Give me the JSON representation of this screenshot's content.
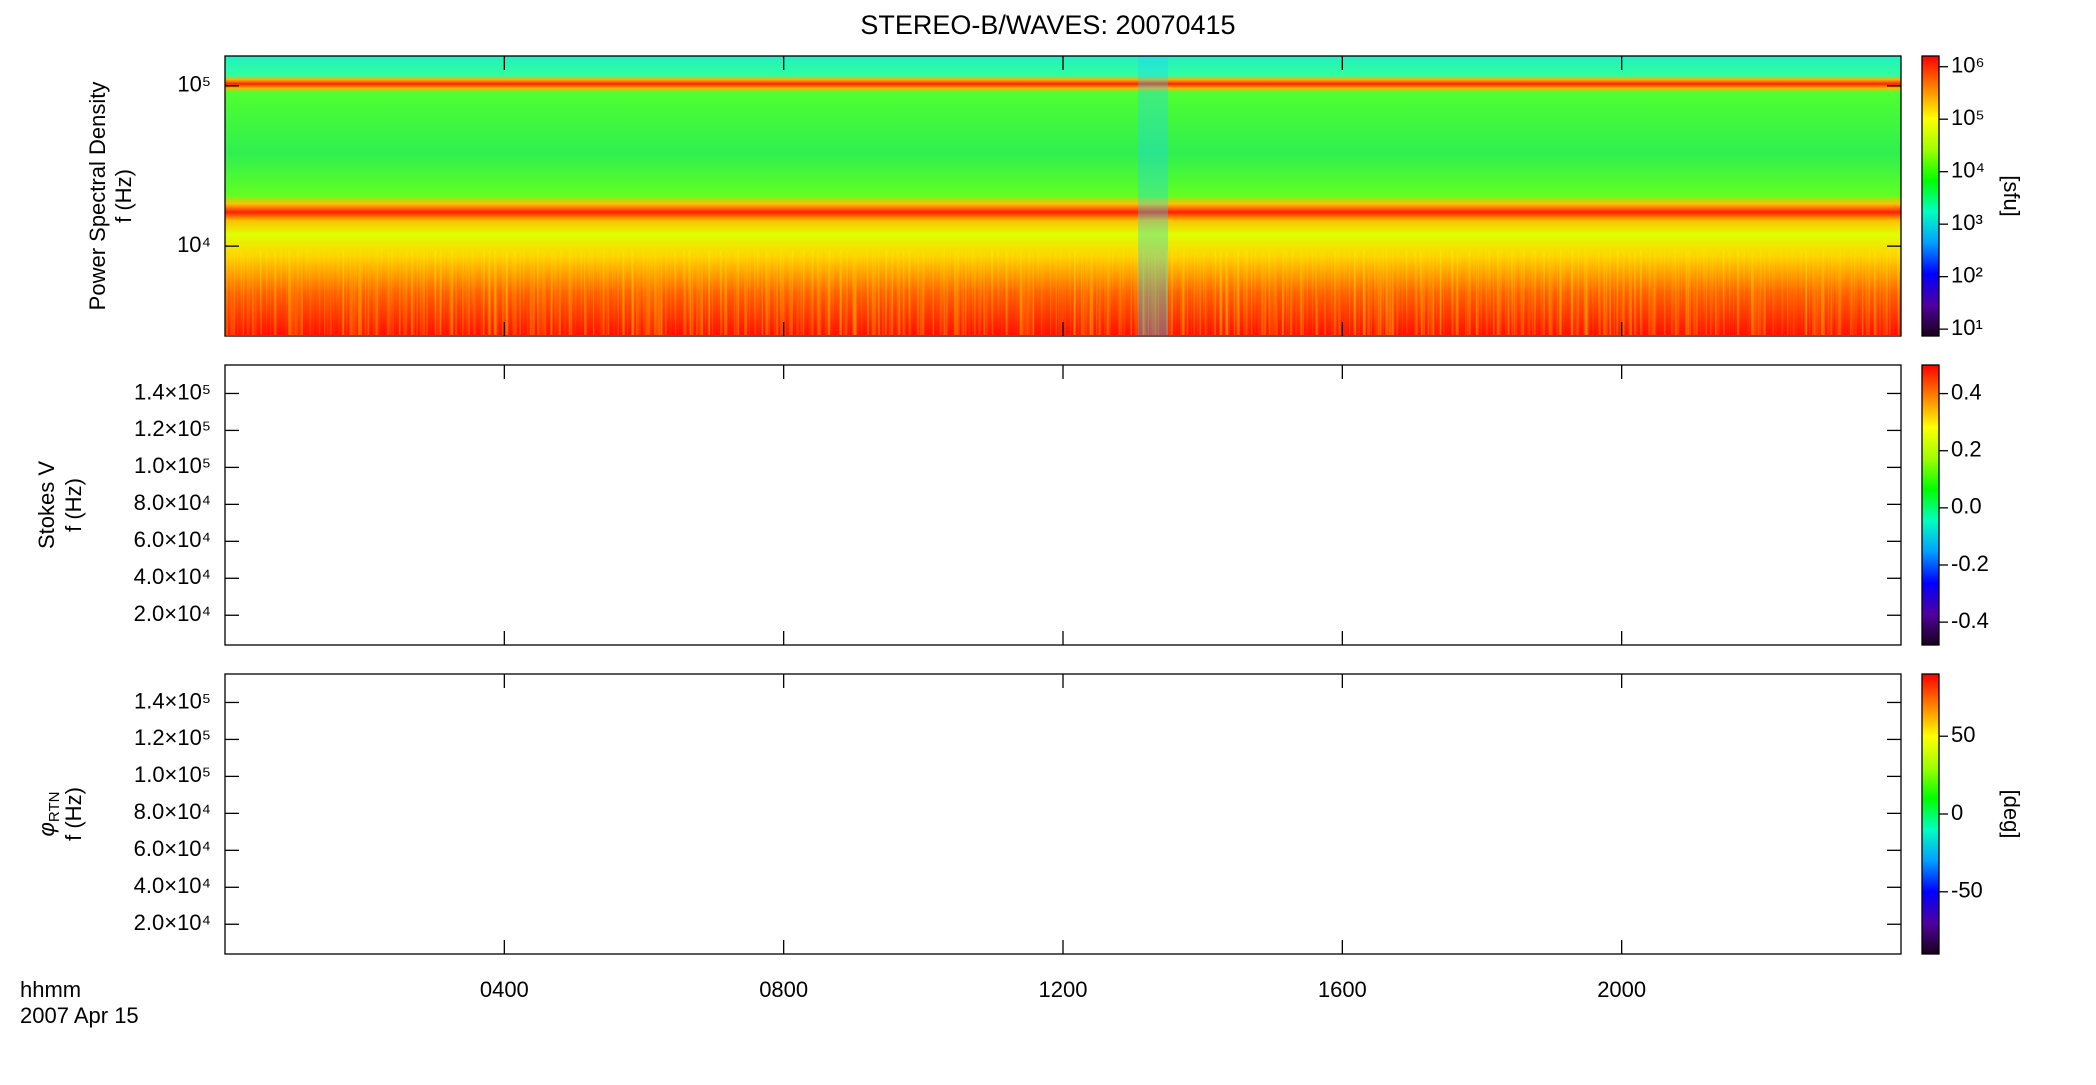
{
  "chart_data": [
    {
      "type": "spectrogram",
      "title": "STEREO-B/WAVES: 20070415",
      "quantity": "Power Spectral Density",
      "ylabel": "f (Hz)",
      "yscale": "log",
      "ylim": [
        2750,
        153500
      ],
      "yticks": [
        {
          "value": 10000,
          "label": "10⁴"
        },
        {
          "value": 100000,
          "label": "10⁵"
        }
      ],
      "xlim": [
        0,
        24
      ],
      "xticks": [
        4,
        8,
        12,
        16,
        20
      ],
      "colorbar": {
        "scale": "log",
        "lim": [
          7.4,
          1600000
        ],
        "label": "[sfu]",
        "ticks": [
          {
            "value": 10,
            "label": "10¹"
          },
          {
            "value": 100,
            "label": "10²"
          },
          {
            "value": 1000,
            "label": "10³"
          },
          {
            "value": 10000,
            "label": "10⁴"
          },
          {
            "value": 100000,
            "label": "10⁵"
          },
          {
            "value": 1000000,
            "label": "10⁶"
          }
        ]
      },
      "colormap": [
        "#1a001a",
        "#5000a0",
        "#0000ff",
        "#00a0ff",
        "#00ffc0",
        "#00ff00",
        "#a0ff00",
        "#ffff00",
        "#ff8000",
        "#ff0000"
      ]
    },
    {
      "type": "spectrogram",
      "quantity": "Stokes V",
      "ylabel": "f (Hz)",
      "yscale": "linear",
      "ylim": [
        3900,
        155400
      ],
      "yticks": [
        {
          "value": 20000,
          "label": "2.0×10⁴"
        },
        {
          "value": 40000,
          "label": "4.0×10⁴"
        },
        {
          "value": 60000,
          "label": "6.0×10⁴"
        },
        {
          "value": 80000,
          "label": "8.0×10⁴"
        },
        {
          "value": 100000,
          "label": "1.0×10⁵"
        },
        {
          "value": 120000,
          "label": "1.2×10⁵"
        },
        {
          "value": 140000,
          "label": "1.4×10⁵"
        }
      ],
      "xlim": [
        0,
        24
      ],
      "xticks": [
        4,
        8,
        12,
        16,
        20
      ],
      "colorbar": {
        "scale": "linear",
        "lim": [
          -0.48,
          0.5
        ],
        "ticks": [
          -0.4,
          -0.2,
          {
            "value": 0,
            "label": "0.0"
          },
          0.2,
          0.4
        ]
      },
      "colormap": [
        "#1a001a",
        "#5000a0",
        "#0000ff",
        "#00a0ff",
        "#00ffc0",
        "#00ff00",
        "#a0ff00",
        "#ffff00",
        "#ff8000",
        "#ff0000"
      ]
    },
    {
      "type": "spectrogram",
      "quantity": "φ",
      "quantity_subscript": "RTN",
      "ylabel": "f (Hz)",
      "yscale": "linear",
      "ylim": [
        3900,
        155400
      ],
      "yticks": [
        {
          "value": 20000,
          "label": "2.0×10⁴"
        },
        {
          "value": 40000,
          "label": "4.0×10⁴"
        },
        {
          "value": 60000,
          "label": "6.0×10⁴"
        },
        {
          "value": 80000,
          "label": "8.0×10⁴"
        },
        {
          "value": 100000,
          "label": "1.0×10⁵"
        },
        {
          "value": 120000,
          "label": "1.2×10⁵"
        },
        {
          "value": 140000,
          "label": "1.4×10⁵"
        }
      ],
      "xlim": [
        0,
        24
      ],
      "xticks": [
        {
          "value": 4,
          "label": "0400"
        },
        {
          "value": 8,
          "label": "0800"
        },
        {
          "value": 12,
          "label": "1200"
        },
        {
          "value": 16,
          "label": "1600"
        },
        {
          "value": 20,
          "label": "2000"
        }
      ],
      "xlabel": "hhmm",
      "date": "2007 Apr 15",
      "colorbar": {
        "scale": "linear",
        "lim": [
          -90,
          90
        ],
        "label": "[deg]",
        "ticks": [
          -50,
          0,
          50
        ]
      },
      "colormap": [
        "#1a001a",
        "#5000a0",
        "#0000ff",
        "#00a0ff",
        "#00ffc0",
        "#00ff00",
        "#a0ff00",
        "#ffff00",
        "#ff8000",
        "#ff0000"
      ]
    }
  ]
}
